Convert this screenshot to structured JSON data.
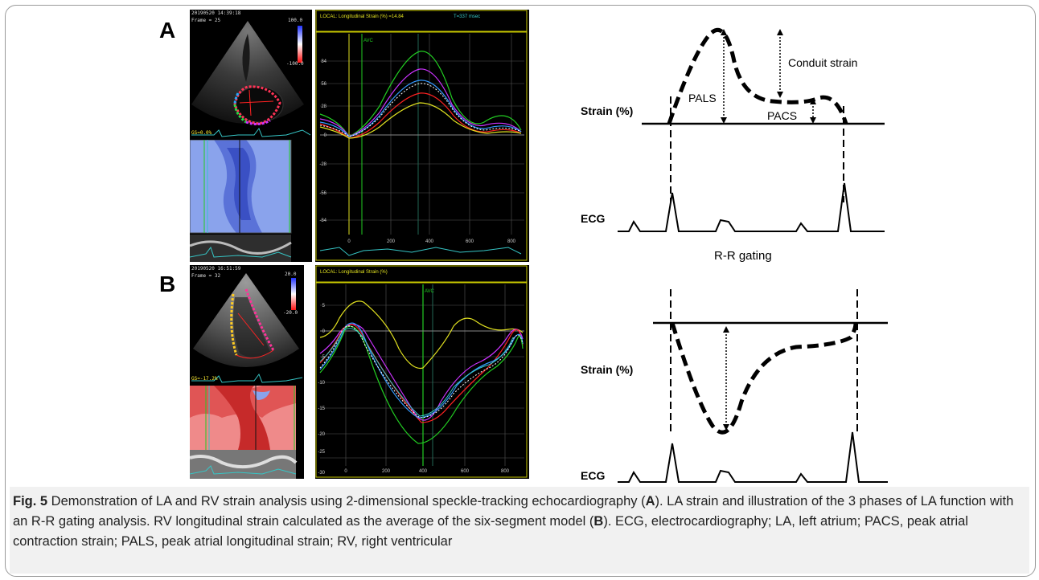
{
  "panels": {
    "a": {
      "letter": "A",
      "echo_timestamp": "20190520 14:39:18",
      "echo_frame": "Frame = 25",
      "echo_scale_top": "100.0",
      "echo_scale_bottom": "-100.0",
      "echo_gs": "GS=0.0%",
      "plot_header": "LOCAL: Longitudinal Strain (%) =14.84",
      "plot_header_time": "T=337 msec",
      "plot_avc": "AVC",
      "plot_yticks": [
        "84",
        "56",
        "28",
        "0",
        "-28",
        "-56",
        "-84"
      ],
      "plot_xticks": [
        "0",
        "200",
        "400",
        "600",
        "800"
      ],
      "diagram": {
        "strain_label": "Strain (%)",
        "pals_label": "PALS",
        "pacs_label": "PACS",
        "conduit_label": "Conduit strain",
        "ecg_label": "ECG",
        "rr_label": "R-R gating"
      }
    },
    "b": {
      "letter": "B",
      "echo_timestamp": "20190520 16:51:59",
      "echo_frame": "Frame = 32",
      "echo_scale_top": "20.0",
      "echo_scale_bottom": "-20.0",
      "echo_gs": "GS=-17.2%",
      "plot_header": "LOCAL: Longitudinal Strain (%)",
      "plot_avc": "AVC",
      "plot_yticks": [
        "5",
        "0",
        "-5",
        "-10",
        "-15",
        "-20",
        "-25",
        "-30"
      ],
      "plot_xticks": [
        "0",
        "200",
        "400",
        "600",
        "800"
      ],
      "diagram": {
        "strain_label": "Strain (%)",
        "ecg_label": "ECG"
      }
    }
  },
  "caption": {
    "fig_label": "Fig. 5",
    "part1": " Demonstration of LA and RV strain analysis using 2-dimensional speckle-tracking echocardiography (",
    "ref_a1": "A",
    "part2": "). LA strain and illustration of the 3 phases of LA function with an R-R gating analysis. RV longitudinal strain calculated as the average of the six-segment model (",
    "ref_b1": "B",
    "part3": "). ECG, electrocardiography; LA, left atrium; PACS, peak atrial contraction strain; PALS, peak atrial longitudinal strain; RV, right ventricular"
  },
  "colors": {
    "echo_bg": "#000000",
    "plot_border": "#c8c800",
    "strain_map_a": "#5a72d8",
    "strain_map_b": "#e04444",
    "avc_line": "#22cc22",
    "ecg_trace": "#36c6c6"
  }
}
